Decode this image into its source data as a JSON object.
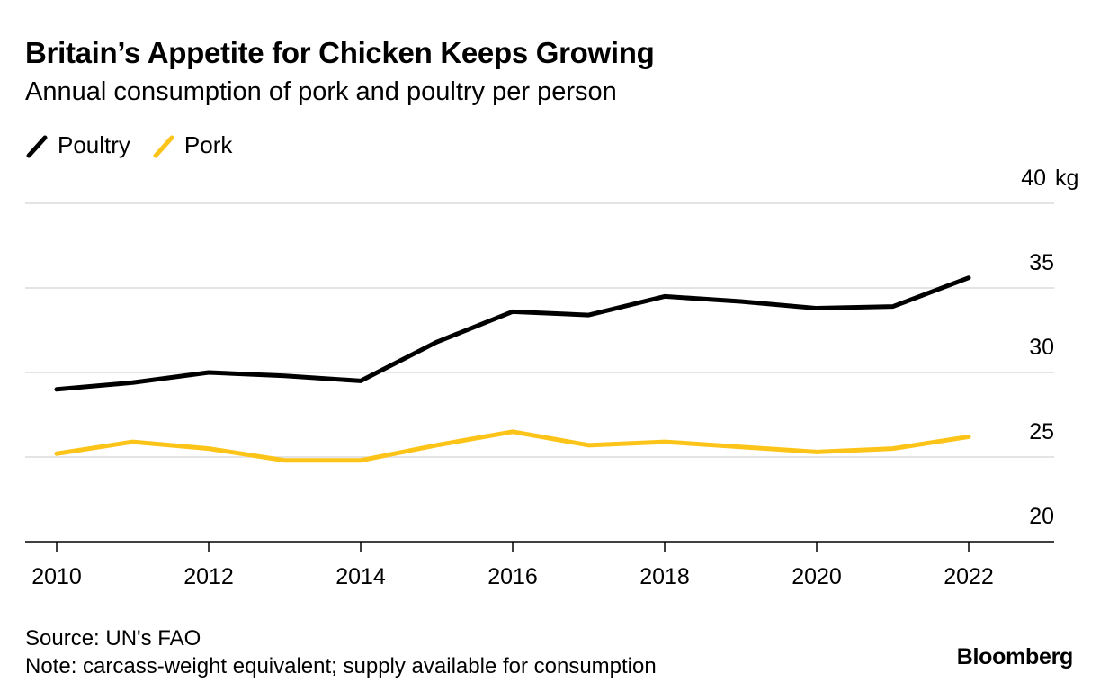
{
  "title": "Britain’s Appetite for Chicken Keeps Growing",
  "subtitle": "Annual consumption of pork and poultry per person",
  "legend": [
    {
      "name": "Poultry",
      "color": "#000000",
      "icon": "diagonal-line-icon"
    },
    {
      "name": "Pork",
      "color": "#fcc419",
      "icon": "diagonal-line-icon"
    }
  ],
  "footer": {
    "source": "Source: UN's FAO",
    "note": "Note: carcass-weight equivalent; supply available for consumption"
  },
  "brand": "Bloomberg",
  "chart_data": {
    "type": "line",
    "x": [
      2010,
      2011,
      2012,
      2013,
      2014,
      2015,
      2016,
      2017,
      2018,
      2019,
      2020,
      2021,
      2022
    ],
    "xticks": [
      2010,
      2012,
      2014,
      2016,
      2018,
      2020,
      2022
    ],
    "yticks": [
      20,
      25,
      30,
      35,
      40
    ],
    "ytick_labels": [
      "20",
      "25",
      "30",
      "35",
      "40"
    ],
    "yunit": "kg",
    "ylim": [
      20,
      40
    ],
    "xlim": [
      2009.8,
      2022.6
    ],
    "grid": true,
    "legend_position": "top-left",
    "series": [
      {
        "name": "Poultry",
        "color": "#000000",
        "values": [
          29.0,
          29.4,
          30.0,
          29.8,
          29.5,
          31.8,
          33.6,
          33.4,
          34.5,
          34.2,
          33.8,
          33.9,
          35.6
        ]
      },
      {
        "name": "Pork",
        "color": "#fcc419",
        "values": [
          25.2,
          25.9,
          25.5,
          24.8,
          24.8,
          25.7,
          26.5,
          25.7,
          25.9,
          25.6,
          25.3,
          25.5,
          26.2
        ]
      }
    ]
  }
}
